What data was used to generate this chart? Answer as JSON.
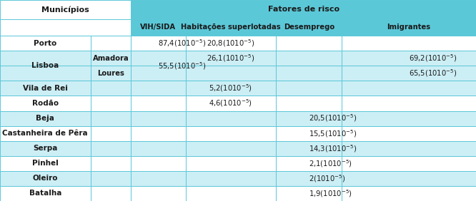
{
  "header_bg": "#ffffff",
  "subheader_bg": "#5bc8d8",
  "row_bg_cyan": "#cceef5",
  "row_bg_white": "#ffffff",
  "border_color": "#5bc8d8",
  "text_color": "#1a1a1a",
  "header1": "Municípios",
  "header2": "Fatores de risco",
  "subheaders": [
    "VIH/SIDA",
    "Habitações superlotadas",
    "Desemprego",
    "Imigrantes"
  ],
  "rows": [
    {
      "municipio": "Porto",
      "sub": "",
      "vih": "87,4(10",
      "hab": "20,8(10",
      "des": "",
      "imi": ""
    },
    {
      "municipio": "Lisboa",
      "sub": "Amadora",
      "vih": "55,5(10",
      "hab": "26,1(10",
      "des": "",
      "imi": "69,2(10"
    },
    {
      "municipio": "",
      "sub": "Loures",
      "vih": "",
      "hab": "",
      "des": "",
      "imi": "65,5(10"
    },
    {
      "municipio": "Vila de Rei",
      "sub": "",
      "vih": "",
      "hab": "5,2(10",
      "des": "",
      "imi": ""
    },
    {
      "municipio": "Rodão",
      "sub": "",
      "vih": "",
      "hab": "4,6(10",
      "des": "",
      "imi": ""
    },
    {
      "municipio": "Beja",
      "sub": "",
      "vih": "",
      "hab": "",
      "des": "20,5(10",
      "imi": ""
    },
    {
      "municipio": "Castanheira de Pêra",
      "sub": "",
      "vih": "",
      "hab": "",
      "des": "15,5(10",
      "imi": ""
    },
    {
      "municipio": "Serpa",
      "sub": "",
      "vih": "",
      "hab": "",
      "des": "14,3(10",
      "imi": ""
    },
    {
      "municipio": "Pinhel",
      "sub": "",
      "vih": "",
      "hab": "",
      "des": "2,1(10",
      "imi": ""
    },
    {
      "municipio": "Oleiro",
      "sub": "",
      "vih": "",
      "hab": "",
      "des": "2(10",
      "imi": ""
    },
    {
      "municipio": "Batalha",
      "sub": "",
      "vih": "",
      "hab": "",
      "des": "1,9(10",
      "imi": ""
    }
  ],
  "row_colors": [
    "white",
    "cyan",
    "cyan",
    "cyan",
    "white",
    "cyan",
    "white",
    "cyan",
    "white",
    "cyan",
    "white"
  ],
  "figsize": [
    6.66,
    2.82
  ],
  "dpi": 100
}
